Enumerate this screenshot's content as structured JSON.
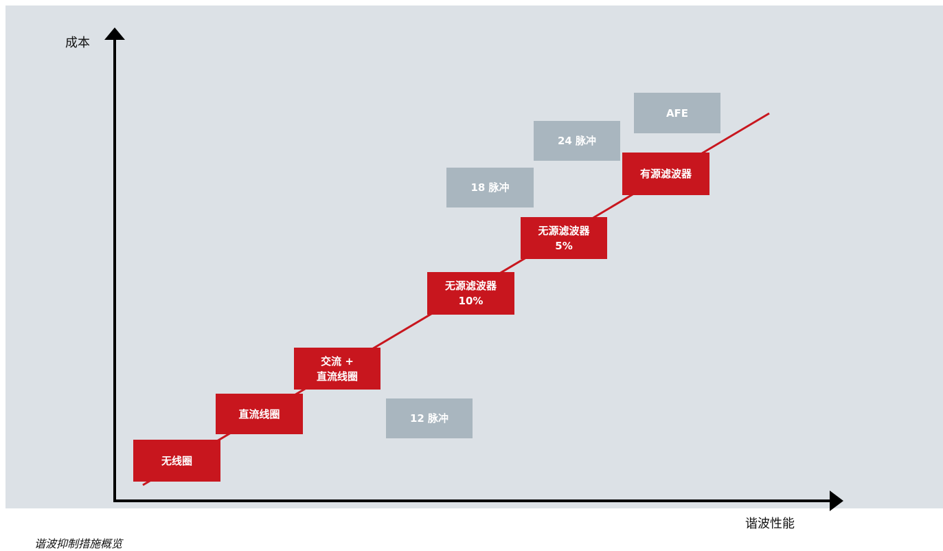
{
  "axes": {
    "y_label": "成本",
    "x_label": "谐波性能"
  },
  "red_boxes": [
    {
      "line1": "无线圈",
      "line2": ""
    },
    {
      "line1": "直流线圈",
      "line2": ""
    },
    {
      "line1": "交流 +",
      "line2": "直流线圈"
    },
    {
      "line1": "无源滤波器",
      "line2": "10%"
    },
    {
      "line1": "无源滤波器",
      "line2": "5%"
    },
    {
      "line1": "有源滤波器",
      "line2": ""
    }
  ],
  "grey_boxes": [
    {
      "text": "12 脉冲"
    },
    {
      "text": "18 脉冲"
    },
    {
      "text": "24 脉冲"
    },
    {
      "text": "AFE"
    }
  ],
  "caption": "谐波抑制措施概览",
  "colors": {
    "red": "#c8161e",
    "grey": "#a9b6bf",
    "background": "#dce1e6"
  }
}
